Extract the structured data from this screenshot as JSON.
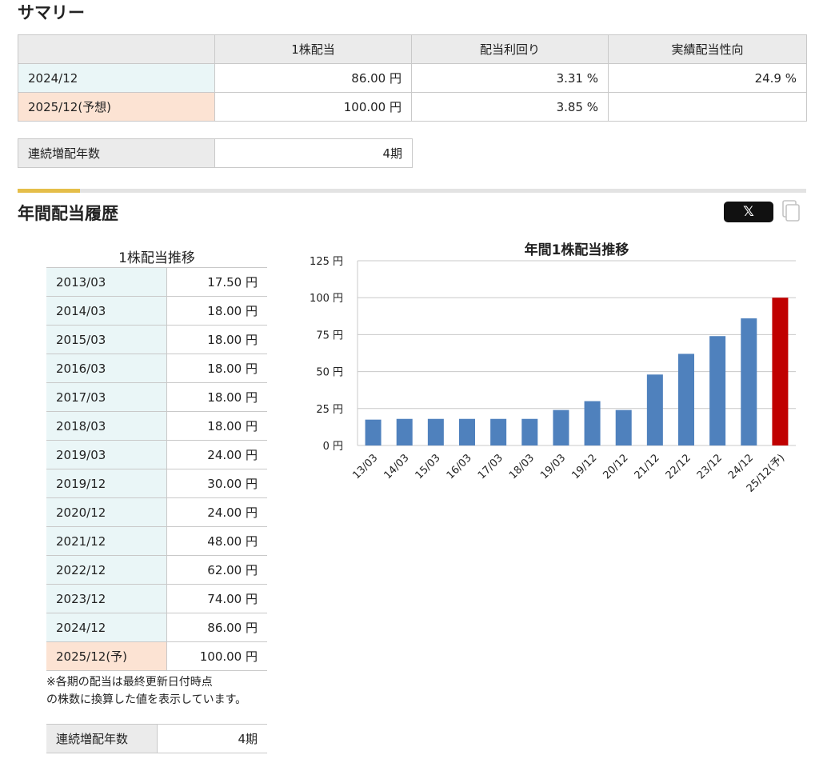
{
  "summary": {
    "title": "サマリー",
    "headers": [
      "",
      "1株配当",
      "配当利回り",
      "実績配当性向"
    ],
    "rows": [
      {
        "label": "2024/12",
        "dividend": "86.00 円",
        "yield": "3.31 %",
        "payout": "24.9 %"
      },
      {
        "label": "2025/12(予想)",
        "dividend": "100.00 円",
        "yield": "3.85 %",
        "payout": ""
      }
    ],
    "streak_label": "連続増配年数",
    "streak_value": "4期"
  },
  "history": {
    "title": "年間配当履歴",
    "share_x_label": "𝕏",
    "table_caption": "1株配当推移",
    "rows": [
      {
        "period": "2013/03",
        "value": "17.50 円"
      },
      {
        "period": "2014/03",
        "value": "18.00 円"
      },
      {
        "period": "2015/03",
        "value": "18.00 円"
      },
      {
        "period": "2016/03",
        "value": "18.00 円"
      },
      {
        "period": "2017/03",
        "value": "18.00 円"
      },
      {
        "period": "2018/03",
        "value": "18.00 円"
      },
      {
        "period": "2019/03",
        "value": "24.00 円"
      },
      {
        "period": "2019/12",
        "value": "30.00 円"
      },
      {
        "period": "2020/12",
        "value": "24.00 円"
      },
      {
        "period": "2021/12",
        "value": "48.00 円"
      },
      {
        "period": "2022/12",
        "value": "62.00 円"
      },
      {
        "period": "2023/12",
        "value": "74.00 円"
      },
      {
        "period": "2024/12",
        "value": "86.00 円"
      },
      {
        "period": "2025/12(予)",
        "value": "100.00 円"
      }
    ],
    "footnote_line1": "※各期の配当は最終更新日付時点",
    "footnote_line2": "の株数に換算した値を表示しています。",
    "streak_label": "連続増配年数",
    "streak_value": "4期"
  },
  "colors": {
    "bar": "#4f81bd",
    "forecast_bar": "#c00000",
    "accent": "#e5be49"
  },
  "chart_data": {
    "type": "bar",
    "title": "年間1株配当推移",
    "categories": [
      "13/03",
      "14/03",
      "15/03",
      "16/03",
      "17/03",
      "18/03",
      "19/03",
      "19/12",
      "20/12",
      "21/12",
      "22/12",
      "23/12",
      "24/12",
      "25/12(予)"
    ],
    "values": [
      17.5,
      18,
      18,
      18,
      18,
      18,
      24,
      30,
      24,
      48,
      62,
      74,
      86,
      100
    ],
    "forecast_index": 13,
    "ylim": [
      0,
      125
    ],
    "yticks": [
      0,
      25,
      50,
      75,
      100,
      125
    ],
    "ytick_labels": [
      "0 円",
      "25 円",
      "50 円",
      "75 円",
      "100 円",
      "125 円"
    ],
    "grid": true,
    "legend": "none"
  }
}
